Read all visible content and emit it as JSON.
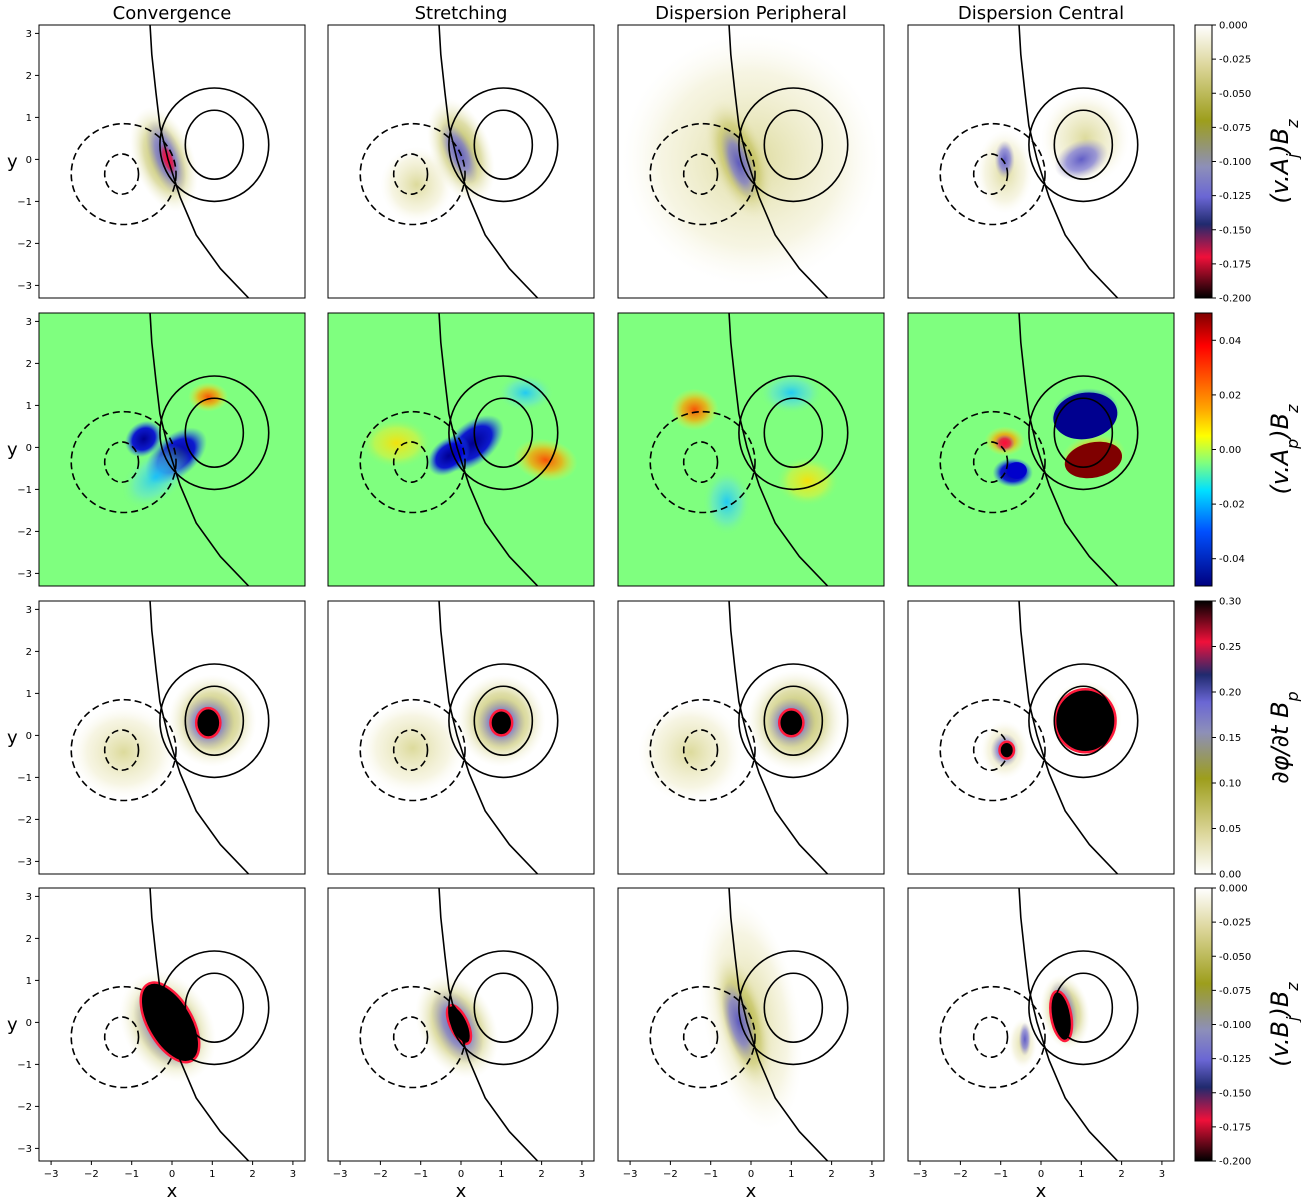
{
  "figure": {
    "columns": [
      "Convergence",
      "Stretching",
      "Dispersion Peripheral",
      "Dispersion Central"
    ],
    "row_ylabel": "y",
    "col_xlabel": "x",
    "rows": [
      {
        "colorbar_label": "(v.A_j)B_z",
        "colorbar_label_display": "(v.A",
        "sub": "j",
        "tail": ")B",
        "tail_sub": "z",
        "ticks": [
          "0.000",
          "-0.025",
          "-0.050",
          "-0.075",
          "-0.100",
          "-0.125",
          "-0.150",
          "-0.175",
          "-0.200"
        ]
      },
      {
        "colorbar_label": "(v.A_p)B_z",
        "colorbar_label_display": "(v.A",
        "sub": "p",
        "tail": ")B",
        "tail_sub": "z",
        "ticks": [
          "0.04",
          "0.02",
          "0.00",
          "-0.02",
          "-0.04"
        ]
      },
      {
        "colorbar_label": "∂φ/∂t B_p",
        "colorbar_label_display": "∂φ/∂t B",
        "sub": "",
        "tail": "",
        "tail_sub": "p",
        "ticks": [
          "0.30",
          "0.25",
          "0.20",
          "0.15",
          "0.10",
          "0.05",
          "0.00"
        ]
      },
      {
        "colorbar_label": "(v.B_j)B_z",
        "colorbar_label_display": "(v.B",
        "sub": "j",
        "tail": ")B",
        "tail_sub": "z",
        "ticks": [
          "0.000",
          "-0.025",
          "-0.050",
          "-0.075",
          "-0.100",
          "-0.125",
          "-0.150",
          "-0.175",
          "-0.200"
        ]
      }
    ],
    "axis_ticks": [
      "−3",
      "−2",
      "−1",
      "0",
      "1",
      "2",
      "3"
    ]
  },
  "chart_data": {
    "type": "heatmap",
    "layout": "4x4 panel grid",
    "xlim": [
      -3.3,
      3.3
    ],
    "ylim": [
      -3.3,
      3.2
    ],
    "grid": false,
    "colorbars": [
      {
        "row": 1,
        "range": [
          -0.2,
          0.0
        ],
        "colormap": "white-olive-blue-red-black"
      },
      {
        "row": 2,
        "range": [
          -0.05,
          0.05
        ],
        "colormap": "jet"
      },
      {
        "row": 3,
        "range": [
          0.0,
          0.3
        ],
        "colormap": "white-olive-blue-red-black"
      },
      {
        "row": 4,
        "range": [
          -0.2,
          0.0
        ],
        "colormap": "white-olive-blue-red-black"
      }
    ],
    "contours": {
      "negative_vortex_dashed": {
        "center": [
          -1.2,
          -0.35
        ],
        "outer_rx": 1.3,
        "outer_ry": 1.2
      },
      "positive_vortex_solid": {
        "center": [
          1.0,
          0.35
        ],
        "outer_rx": 1.35,
        "outer_ry": 1.35
      },
      "front_line": "solid curve from (-0.6, 3.3) to (1.9, -3.3)"
    }
  }
}
